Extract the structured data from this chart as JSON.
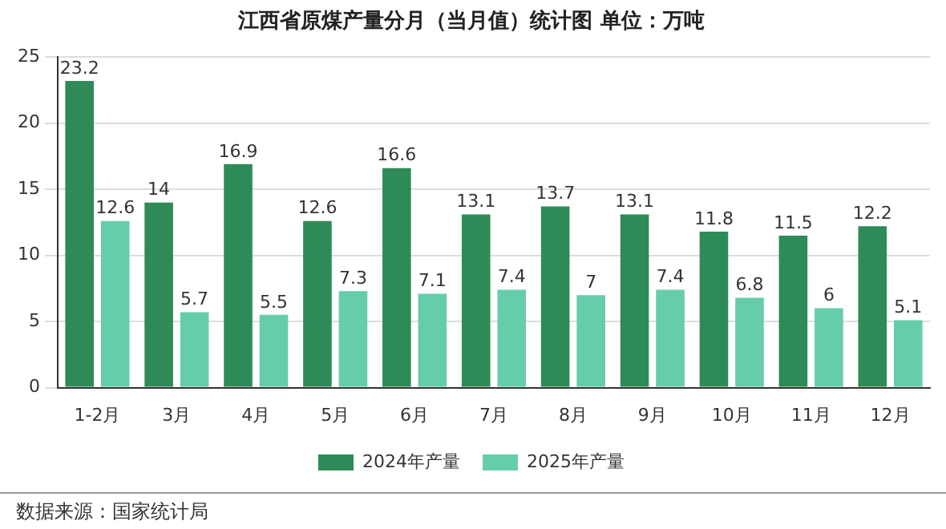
{
  "chart_data": {
    "type": "bar",
    "title": "江西省原煤产量分月（当月值）统计图 单位：万吨",
    "categories": [
      "1-2月",
      "3月",
      "4月",
      "5月",
      "6月",
      "7月",
      "8月",
      "9月",
      "10月",
      "11月",
      "12月"
    ],
    "series": [
      {
        "name": "2024年产量",
        "color": "#2e8b57",
        "values": [
          23.2,
          14,
          16.9,
          12.6,
          16.6,
          13.1,
          13.7,
          13.1,
          11.8,
          11.5,
          12.2
        ]
      },
      {
        "name": "2025年产量",
        "color": "#66cdaa",
        "values": [
          12.6,
          5.7,
          5.5,
          7.3,
          7.1,
          7.4,
          7,
          7.4,
          6.8,
          6,
          5.1
        ]
      }
    ],
    "ylim": [
      0,
      25
    ],
    "yticks": [
      0,
      5,
      10,
      15,
      20,
      25
    ],
    "grid": "y",
    "legend": "bottom",
    "data_labels": true,
    "annotations": [
      "数据来源：国家统计局"
    ]
  }
}
